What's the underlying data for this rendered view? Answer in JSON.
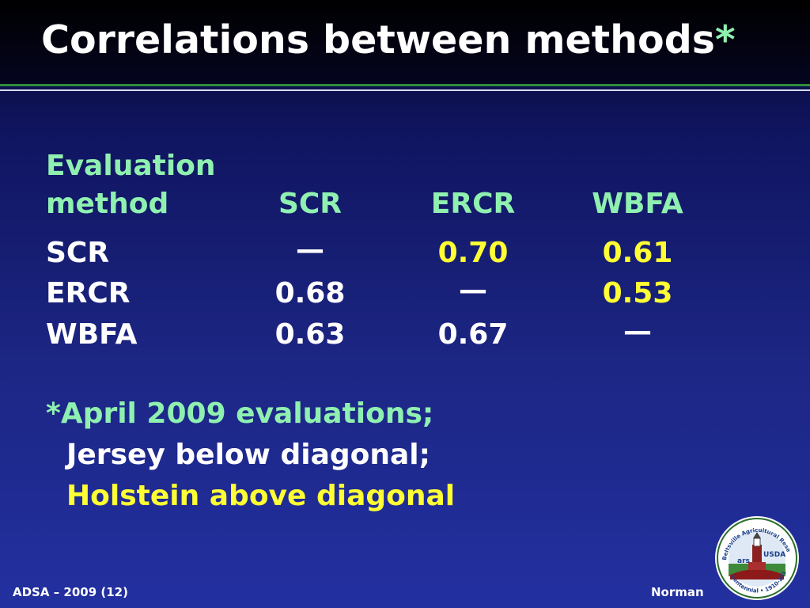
{
  "slide": {
    "title": "Correlations between methods",
    "title_star": "*"
  },
  "table": {
    "header_line1": "Evaluation",
    "header_line2": "method",
    "columns": [
      "SCR",
      "ERCR",
      "WBFA"
    ],
    "rows": [
      {
        "label": "SCR",
        "values": [
          "—",
          "0.70",
          "0.61"
        ]
      },
      {
        "label": "ERCR",
        "values": [
          "0.68",
          "—",
          "0.53"
        ]
      },
      {
        "label": "WBFA",
        "values": [
          "0.63",
          "0.67",
          "—"
        ]
      }
    ]
  },
  "note": {
    "line1": "*April 2009 evaluations;",
    "line2": "Jersey below diagonal;",
    "line3": "Holstein above diagonal"
  },
  "footer": {
    "left": "ADSA – 2009 (12)",
    "right": "Norman"
  },
  "logo": {
    "ring_text": "Beltsville Agricultural Research Center",
    "bottom_text": "Centennial • 1910-2010",
    "usda": "USDA",
    "ars": "ars"
  },
  "colors": {
    "header_green": "#8ff0b0",
    "holstein_yellow": "#ffff33",
    "background_blue": "#1c2684"
  }
}
